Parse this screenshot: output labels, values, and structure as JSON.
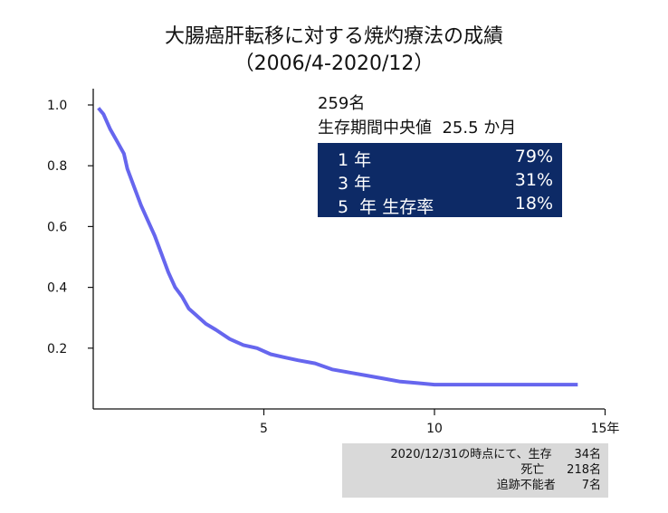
{
  "title_line1": "大腸癌肝転移に対する焼灼療法の成績",
  "title_line2": "（2006/4-2020/12）",
  "stats": {
    "n": "259名",
    "median": "生存期間中央値  25.5 か月",
    "rates": [
      {
        "label": "1 年",
        "value": "79%"
      },
      {
        "label": "3 年",
        "value": "31%"
      },
      {
        "label": "5  年 生存率",
        "value": "18%"
      }
    ]
  },
  "note": {
    "rows": [
      "2020/12/31の時点にて、生存      34名",
      "死亡      218名",
      "追跡不能者       7名"
    ]
  },
  "colors": {
    "curve": "#6666ee",
    "rate_box": "#0d2a66",
    "note_box": "#d9d9d9"
  },
  "chart_data": {
    "type": "line",
    "title": "大腸癌肝転移に対する焼灼療法の成績",
    "xlabel": "",
    "ylabel": "",
    "xlim": [
      0,
      15
    ],
    "ylim": [
      0,
      1.0
    ],
    "x_tick_labels": [
      {
        "value": 5,
        "label": "5"
      },
      {
        "value": 10,
        "label": "10"
      },
      {
        "value": 15,
        "label": "15年"
      }
    ],
    "y_tick_labels": [
      {
        "value": 0.2,
        "label": "0.2"
      },
      {
        "value": 0.4,
        "label": "0.4"
      },
      {
        "value": 0.6,
        "label": "0.6"
      },
      {
        "value": 0.8,
        "label": "0.8"
      },
      {
        "value": 1.0,
        "label": "1.0"
      }
    ],
    "series": [
      {
        "x": [
          0.15,
          0.3,
          0.5,
          0.7,
          0.9,
          1.0,
          1.2,
          1.4,
          1.6,
          1.8,
          2.0,
          2.2,
          2.4,
          2.6,
          2.8,
          3.0,
          3.3,
          3.6,
          4.0,
          4.4,
          4.8,
          5.2,
          5.6,
          6.0,
          6.5,
          7.0,
          7.5,
          8.0,
          8.5,
          9.0,
          9.5,
          10.0,
          11.0,
          12.0,
          13.0,
          14.2
        ],
        "y": [
          0.99,
          0.97,
          0.92,
          0.88,
          0.84,
          0.79,
          0.73,
          0.67,
          0.62,
          0.57,
          0.51,
          0.45,
          0.4,
          0.37,
          0.33,
          0.31,
          0.28,
          0.26,
          0.23,
          0.21,
          0.2,
          0.18,
          0.17,
          0.16,
          0.15,
          0.13,
          0.12,
          0.11,
          0.1,
          0.09,
          0.085,
          0.08,
          0.08,
          0.08,
          0.08,
          0.08
        ]
      }
    ]
  }
}
